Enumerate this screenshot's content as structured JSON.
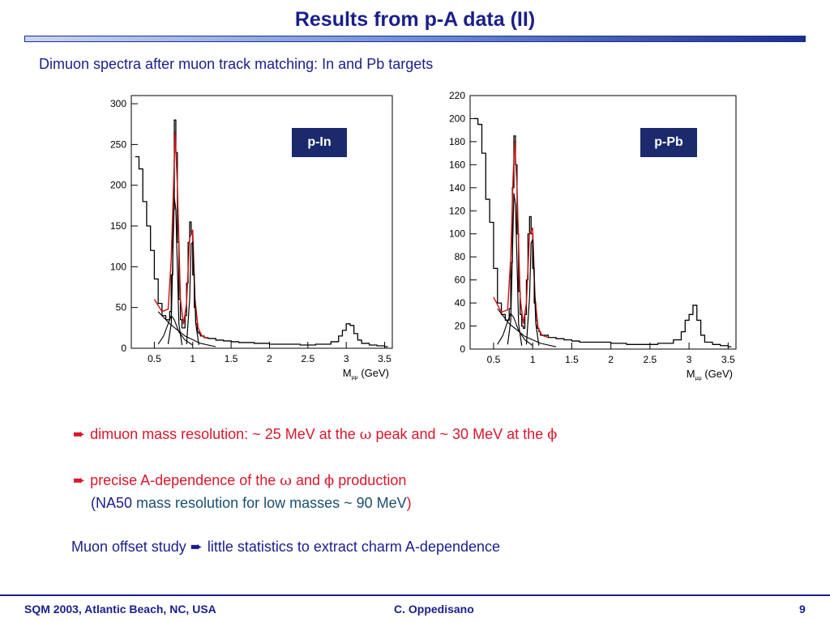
{
  "slide": {
    "title": "Results from p-A data (II)",
    "subtitle": "Dimuon spectra after muon track matching: In and Pb targets",
    "accent_color": "#1a1e8c",
    "highlight_color": "#d8182c"
  },
  "bullets": {
    "b1_text": "dimuon mass resolution: ~ 25 MeV at the ",
    "b1_omega": "ω",
    "b1_mid": " peak and ~ 30 MeV at the ",
    "b1_phi": "ϕ",
    "b2_text": "precise A-dependence of the ",
    "b2_omega": "ω",
    "b2_and": " and ",
    "b2_phi": "ϕ",
    "b2_end": " production",
    "b3_open": "(NA50 ",
    "b3_text": "mass resolution for low masses ~ 90 MeV",
    "b3_close": ")",
    "b4_a": "Muon offset study ",
    "b4_b": "little statistics to extract charm A-dependence"
  },
  "footer": {
    "left": "SQM 2003, Atlantic Beach, NC, USA",
    "center": "C. Oppedisano",
    "right": "9"
  },
  "chart_data": [
    {
      "type": "line",
      "label": "p-In",
      "xlabel_main": "M",
      "xlabel_sub": "μμ",
      "xlabel_unit": " (GeV)",
      "xlim": [
        0.2,
        3.6
      ],
      "ylim": [
        0,
        310
      ],
      "xticks": [
        0.5,
        1,
        1.5,
        2,
        2.5,
        3,
        3.5
      ],
      "xtick_labels": [
        "0.5",
        "1",
        "1.5",
        "2",
        "2.5",
        "3",
        "3.5"
      ],
      "yticks": [
        0,
        50,
        100,
        150,
        200,
        250,
        300
      ],
      "ytick_labels": [
        "0",
        "50",
        "100",
        "150",
        "200",
        "250",
        "300"
      ],
      "series": [
        {
          "kind": "data-histogram",
          "x": [
            0.25,
            0.3,
            0.35,
            0.4,
            0.45,
            0.5,
            0.55,
            0.6,
            0.65,
            0.7,
            0.72,
            0.74,
            0.76,
            0.78,
            0.8,
            0.82,
            0.84,
            0.86,
            0.88,
            0.9,
            0.92,
            0.94,
            0.96,
            0.98,
            1.0,
            1.02,
            1.04,
            1.06,
            1.08,
            1.1,
            1.15,
            1.2,
            1.3,
            1.4,
            1.5,
            1.6,
            1.8,
            2.0,
            2.2,
            2.4,
            2.6,
            2.8,
            2.9,
            2.95,
            3.0,
            3.05,
            3.1,
            3.15,
            3.2,
            3.3,
            3.4,
            3.5
          ],
          "y": [
            235,
            220,
            180,
            150,
            120,
            85,
            55,
            40,
            35,
            45,
            90,
            170,
            280,
            240,
            130,
            60,
            35,
            25,
            25,
            40,
            80,
            130,
            155,
            140,
            90,
            50,
            30,
            20,
            18,
            15,
            13,
            12,
            10,
            9,
            8,
            7,
            6,
            5,
            5,
            4,
            5,
            8,
            15,
            22,
            30,
            28,
            18,
            10,
            6,
            4,
            3,
            2
          ]
        },
        {
          "kind": "total-fit",
          "x": [
            0.5,
            0.6,
            0.68,
            0.72,
            0.75,
            0.77,
            0.8,
            0.84,
            0.88,
            0.92,
            0.96,
            1.0,
            1.03,
            1.07,
            1.12,
            1.2
          ],
          "y": [
            60,
            45,
            48,
            110,
            200,
            265,
            200,
            60,
            30,
            55,
            135,
            145,
            60,
            25,
            15,
            12
          ]
        },
        {
          "kind": "omega-peak",
          "x": [
            0.68,
            0.72,
            0.74,
            0.76,
            0.78,
            0.8,
            0.82,
            0.86
          ],
          "y": [
            5,
            30,
            110,
            185,
            170,
            100,
            30,
            4
          ]
        },
        {
          "kind": "phi-peak",
          "x": [
            0.92,
            0.96,
            0.98,
            1.0,
            1.02,
            1.04,
            1.08
          ],
          "y": [
            5,
            60,
            128,
            130,
            80,
            30,
            4
          ]
        },
        {
          "kind": "rho-shape",
          "x": [
            0.55,
            0.62,
            0.68,
            0.72,
            0.76,
            0.82,
            0.9,
            1.0
          ],
          "y": [
            5,
            15,
            30,
            40,
            35,
            20,
            10,
            4
          ]
        },
        {
          "kind": "background",
          "x": [
            0.55,
            0.7,
            0.9,
            1.1,
            1.3
          ],
          "y": [
            45,
            30,
            15,
            6,
            2
          ]
        }
      ]
    },
    {
      "type": "line",
      "label": "p-Pb",
      "xlabel_main": "M",
      "xlabel_sub": "μμ",
      "xlabel_unit": " (GeV)",
      "xlim": [
        0.2,
        3.6
      ],
      "ylim": [
        0,
        220
      ],
      "xticks": [
        0.5,
        1,
        1.5,
        2,
        2.5,
        3,
        3.5
      ],
      "xtick_labels": [
        "0.5",
        "1",
        "1.5",
        "2",
        "2.5",
        "3",
        "3.5"
      ],
      "yticks": [
        0,
        20,
        40,
        60,
        80,
        100,
        120,
        140,
        160,
        180,
        200,
        220
      ],
      "ytick_labels": [
        "0",
        "20",
        "40",
        "60",
        "80",
        "100",
        "120",
        "140",
        "160",
        "180",
        "200",
        "220"
      ],
      "series": [
        {
          "kind": "data-histogram",
          "x": [
            0.25,
            0.3,
            0.35,
            0.4,
            0.45,
            0.5,
            0.55,
            0.6,
            0.65,
            0.7,
            0.72,
            0.74,
            0.76,
            0.78,
            0.8,
            0.82,
            0.84,
            0.86,
            0.88,
            0.9,
            0.92,
            0.94,
            0.96,
            0.98,
            1.0,
            1.02,
            1.04,
            1.06,
            1.08,
            1.1,
            1.15,
            1.2,
            1.3,
            1.4,
            1.5,
            1.6,
            1.8,
            2.0,
            2.2,
            2.4,
            2.6,
            2.8,
            2.9,
            2.95,
            3.0,
            3.05,
            3.1,
            3.15,
            3.2,
            3.3,
            3.4,
            3.5
          ],
          "y": [
            200,
            195,
            170,
            130,
            110,
            70,
            40,
            30,
            25,
            35,
            75,
            140,
            185,
            160,
            100,
            50,
            30,
            20,
            18,
            30,
            60,
            100,
            115,
            100,
            70,
            40,
            25,
            18,
            15,
            12,
            12,
            10,
            9,
            8,
            7,
            6,
            6,
            5,
            4,
            4,
            5,
            8,
            15,
            25,
            30,
            38,
            25,
            12,
            6,
            4,
            3,
            2
          ]
        },
        {
          "kind": "total-fit",
          "x": [
            0.5,
            0.6,
            0.68,
            0.72,
            0.75,
            0.77,
            0.8,
            0.84,
            0.88,
            0.92,
            0.96,
            1.0,
            1.03,
            1.07,
            1.12,
            1.2
          ],
          "y": [
            45,
            32,
            34,
            80,
            150,
            180,
            140,
            45,
            22,
            40,
            100,
            105,
            45,
            18,
            12,
            10
          ]
        },
        {
          "kind": "omega-peak",
          "x": [
            0.68,
            0.72,
            0.74,
            0.76,
            0.78,
            0.8,
            0.82,
            0.86
          ],
          "y": [
            4,
            25,
            80,
            135,
            125,
            75,
            22,
            3
          ]
        },
        {
          "kind": "phi-peak",
          "x": [
            0.92,
            0.96,
            0.98,
            1.0,
            1.02,
            1.04,
            1.08
          ],
          "y": [
            4,
            45,
            92,
            95,
            60,
            22,
            3
          ]
        },
        {
          "kind": "rho-shape",
          "x": [
            0.55,
            0.62,
            0.68,
            0.72,
            0.76,
            0.82,
            0.9,
            1.0
          ],
          "y": [
            4,
            12,
            24,
            31,
            27,
            16,
            8,
            3
          ]
        },
        {
          "kind": "background",
          "x": [
            0.55,
            0.7,
            0.9,
            1.1,
            1.3
          ],
          "y": [
            35,
            22,
            11,
            5,
            2
          ]
        }
      ]
    }
  ]
}
